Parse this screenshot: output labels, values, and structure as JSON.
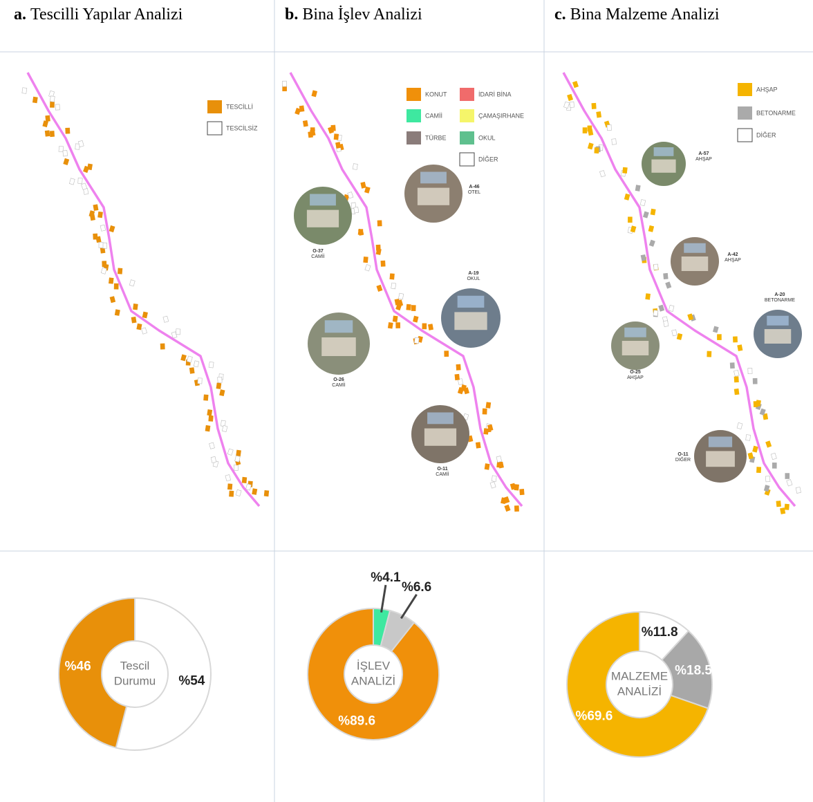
{
  "table": {
    "headers": [
      {
        "letter": "a.",
        "title": "Tescilli Yapılar Analizi"
      },
      {
        "letter": "b.",
        "title": "Bina İşlev Analizi"
      },
      {
        "letter": "c.",
        "title": "Bina Malzeme Analizi"
      }
    ]
  },
  "maps": [
    {
      "legend": [
        {
          "label": "TESCİLLİ",
          "color": "#e8900a"
        },
        {
          "label": "TESCİLSİZ",
          "color": "#ffffff"
        }
      ],
      "photos": []
    },
    {
      "legend": [
        {
          "label": "KONUT",
          "color": "#f0900a"
        },
        {
          "label": "İDARİ BİNA",
          "color": "#f06b6b"
        },
        {
          "label": "CAMİİ",
          "color": "#3ee8a0"
        },
        {
          "label": "ÇAMAŞIRHANE",
          "color": "#f5f56a"
        },
        {
          "label": "TÜRBE",
          "color": "#8a7c7a"
        },
        {
          "label": "OKUL",
          "color": "#5fc08e"
        },
        {
          "label": "DİĞER",
          "color": "#ffffff"
        }
      ],
      "photos": [
        {
          "code": "O-37",
          "type": "CAMİİ"
        },
        {
          "code": "A-46",
          "type": "OTEL"
        },
        {
          "code": "A-19",
          "type": "OKUL"
        },
        {
          "code": "O-26",
          "type": "CAMİİ"
        },
        {
          "code": "O-11",
          "type": "CAMİİ"
        }
      ]
    },
    {
      "legend": [
        {
          "label": "AHŞAP",
          "color": "#f5b400"
        },
        {
          "label": "BETONARME",
          "color": "#aaaaaa"
        },
        {
          "label": "DİĞER",
          "color": "#ffffff"
        }
      ],
      "photos": [
        {
          "code": "A-57",
          "type": "AHŞAP"
        },
        {
          "code": "A-42",
          "type": "AHŞAP"
        },
        {
          "code": "A-20",
          "type": "BETONARME"
        },
        {
          "code": "O-25",
          "type": "AHŞAP"
        },
        {
          "code": "O-11",
          "type": "DİĞER"
        }
      ]
    }
  ],
  "chart_data": [
    {
      "type": "pie",
      "center_label": [
        "Tescil",
        "Durumu"
      ],
      "values": [
        54,
        46
      ],
      "value_labels": [
        "%54",
        "%46"
      ],
      "colors": [
        "#ffffff",
        "#e8900a"
      ]
    },
    {
      "type": "pie",
      "center_label": [
        "İŞLEV",
        "ANALİZİ"
      ],
      "values": [
        4.1,
        6.6,
        89.6
      ],
      "value_labels": [
        "%4.1",
        "%6.6",
        "%89.6"
      ],
      "colors": [
        "#3ee8a0",
        "#c8c8c8",
        "#f0900a"
      ]
    },
    {
      "type": "pie",
      "center_label": [
        "MALZEME",
        "ANALİZİ"
      ],
      "values": [
        11.8,
        18.5,
        69.6
      ],
      "value_labels": [
        "%11.8",
        "%18.5",
        "%69.6"
      ],
      "colors": [
        "#ffffff",
        "#a8a8a8",
        "#f5b400"
      ]
    }
  ]
}
